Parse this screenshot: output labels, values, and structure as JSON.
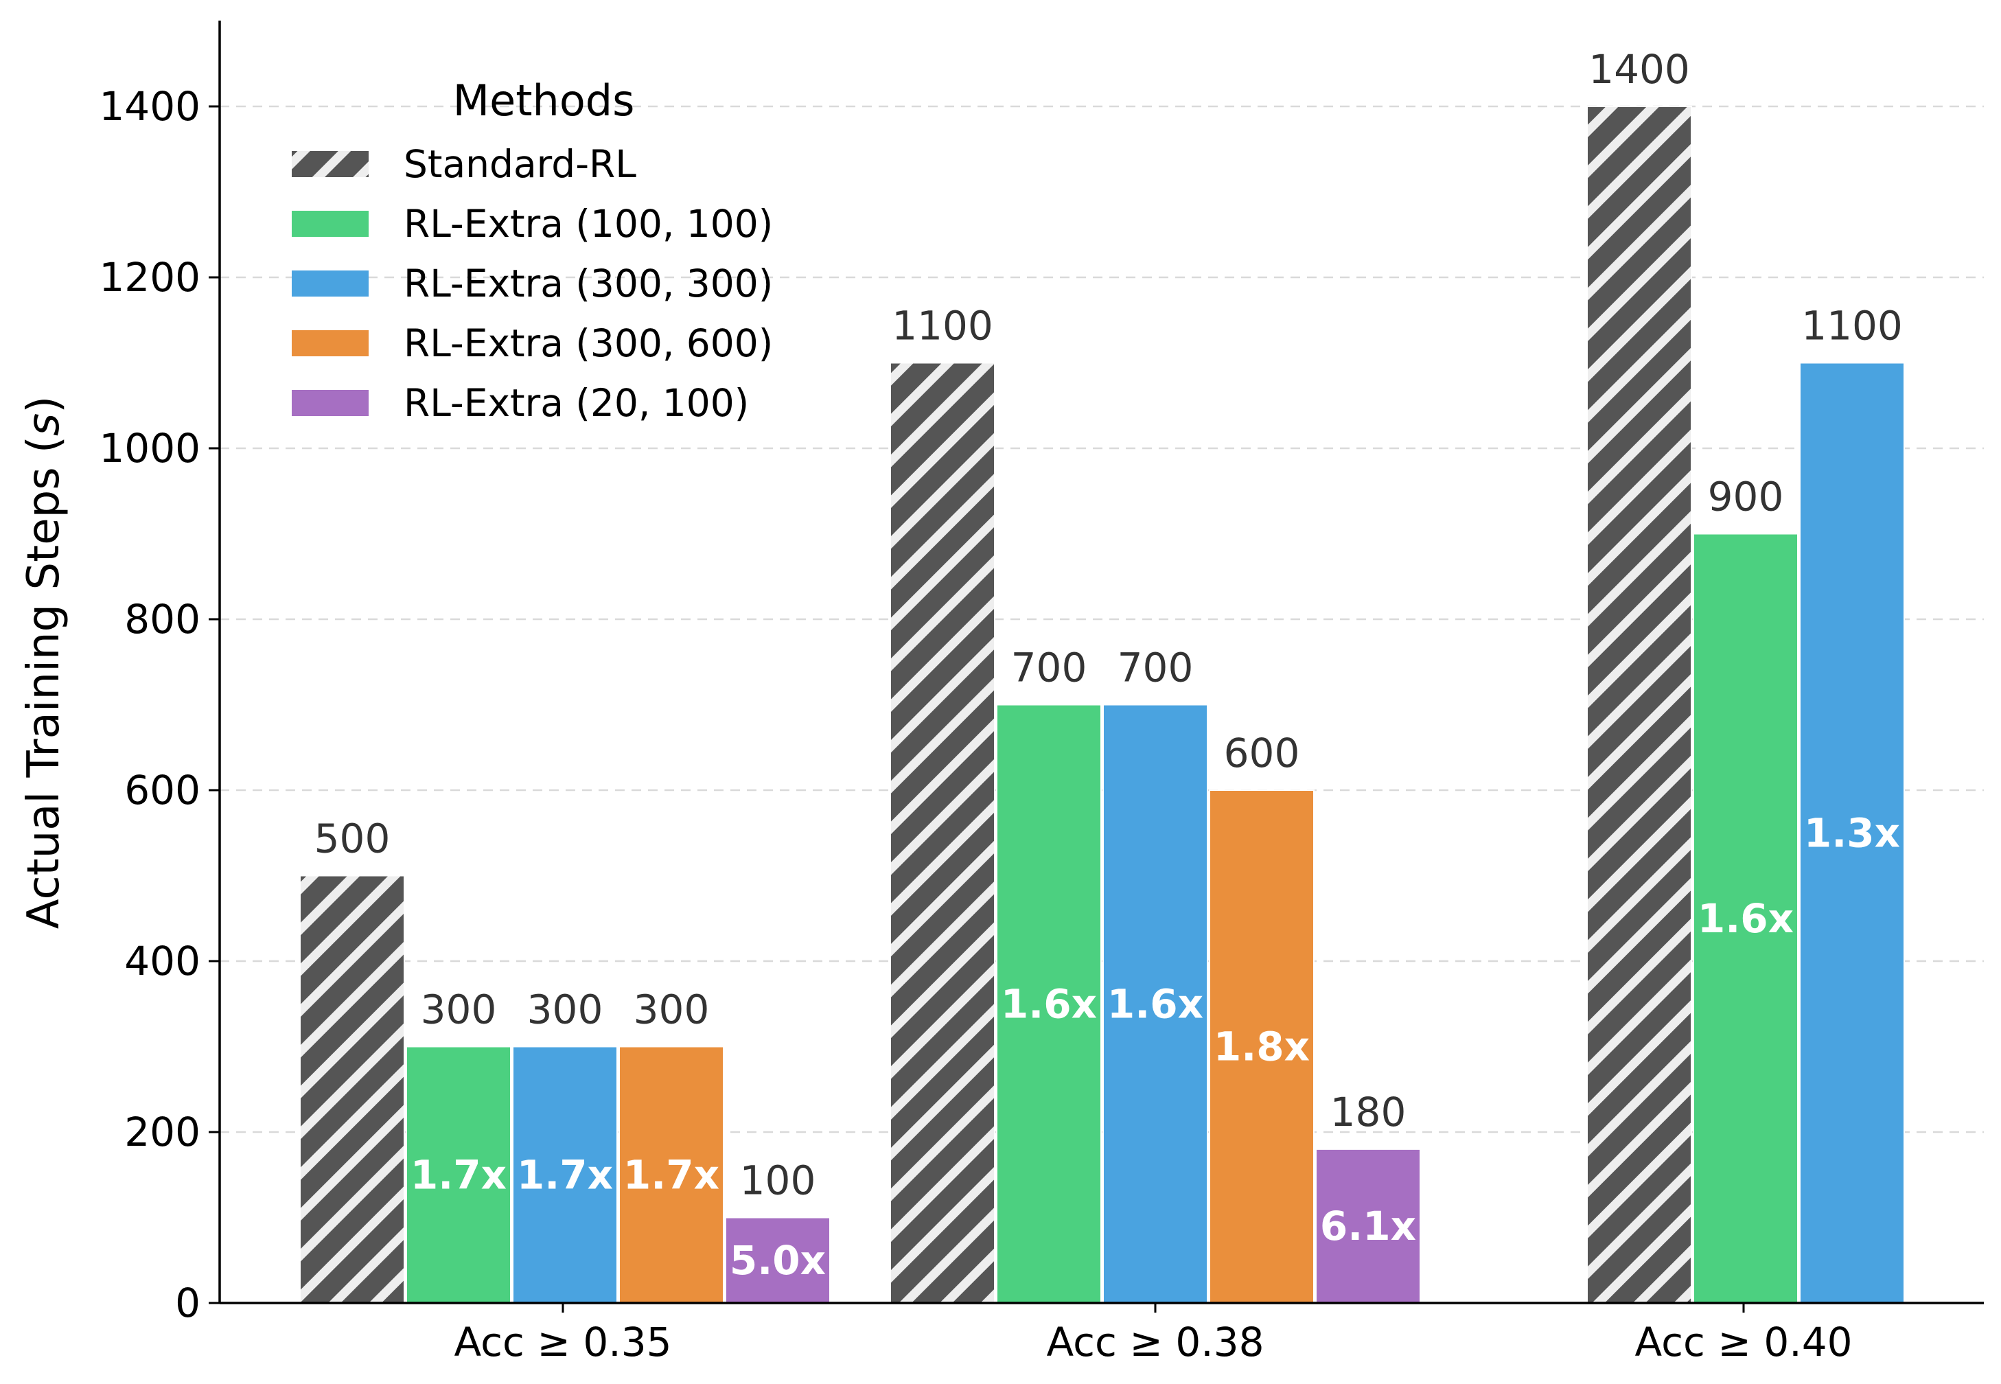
{
  "chart_data": {
    "type": "bar",
    "title": "",
    "xlabel": "",
    "ylabel": "Actual Training Steps (s)",
    "ylabel_parts": [
      "Actual Training Steps (",
      "s",
      ")"
    ],
    "ylim": [
      0,
      1500
    ],
    "yticks": [
      0,
      200,
      400,
      600,
      800,
      1000,
      1200,
      1400
    ],
    "grid": "y dashed",
    "legend": {
      "title": "Methods",
      "position": "top-left"
    },
    "categories": [
      "Acc ≥ 0.35",
      "Acc ≥ 0.38",
      "Acc ≥ 0.40"
    ],
    "series": [
      {
        "name": "Standard-RL",
        "color": "#555555",
        "pattern": "hatch",
        "values": [
          500,
          1100,
          1400
        ],
        "speedups": [
          null,
          null,
          null
        ]
      },
      {
        "name": "RL-Extra (100, 100)",
        "color": "#4cd080",
        "values": [
          300,
          700,
          900
        ],
        "speedups": [
          "1.7x",
          "1.6x",
          "1.6x"
        ]
      },
      {
        "name": "RL-Extra (300, 300)",
        "color": "#4aa3e0",
        "values": [
          300,
          700,
          1100
        ],
        "speedups": [
          "1.7x",
          "1.6x",
          "1.3x"
        ]
      },
      {
        "name": "RL-Extra (300, 600)",
        "color": "#ea8f3c",
        "values": [
          300,
          600,
          null
        ],
        "speedups": [
          "1.7x",
          "1.8x",
          null
        ]
      },
      {
        "name": "RL-Extra (20, 100)",
        "color": "#a66fc2",
        "values": [
          100,
          180,
          null
        ],
        "speedups": [
          "5.0x",
          "6.1x",
          null
        ]
      }
    ]
  }
}
